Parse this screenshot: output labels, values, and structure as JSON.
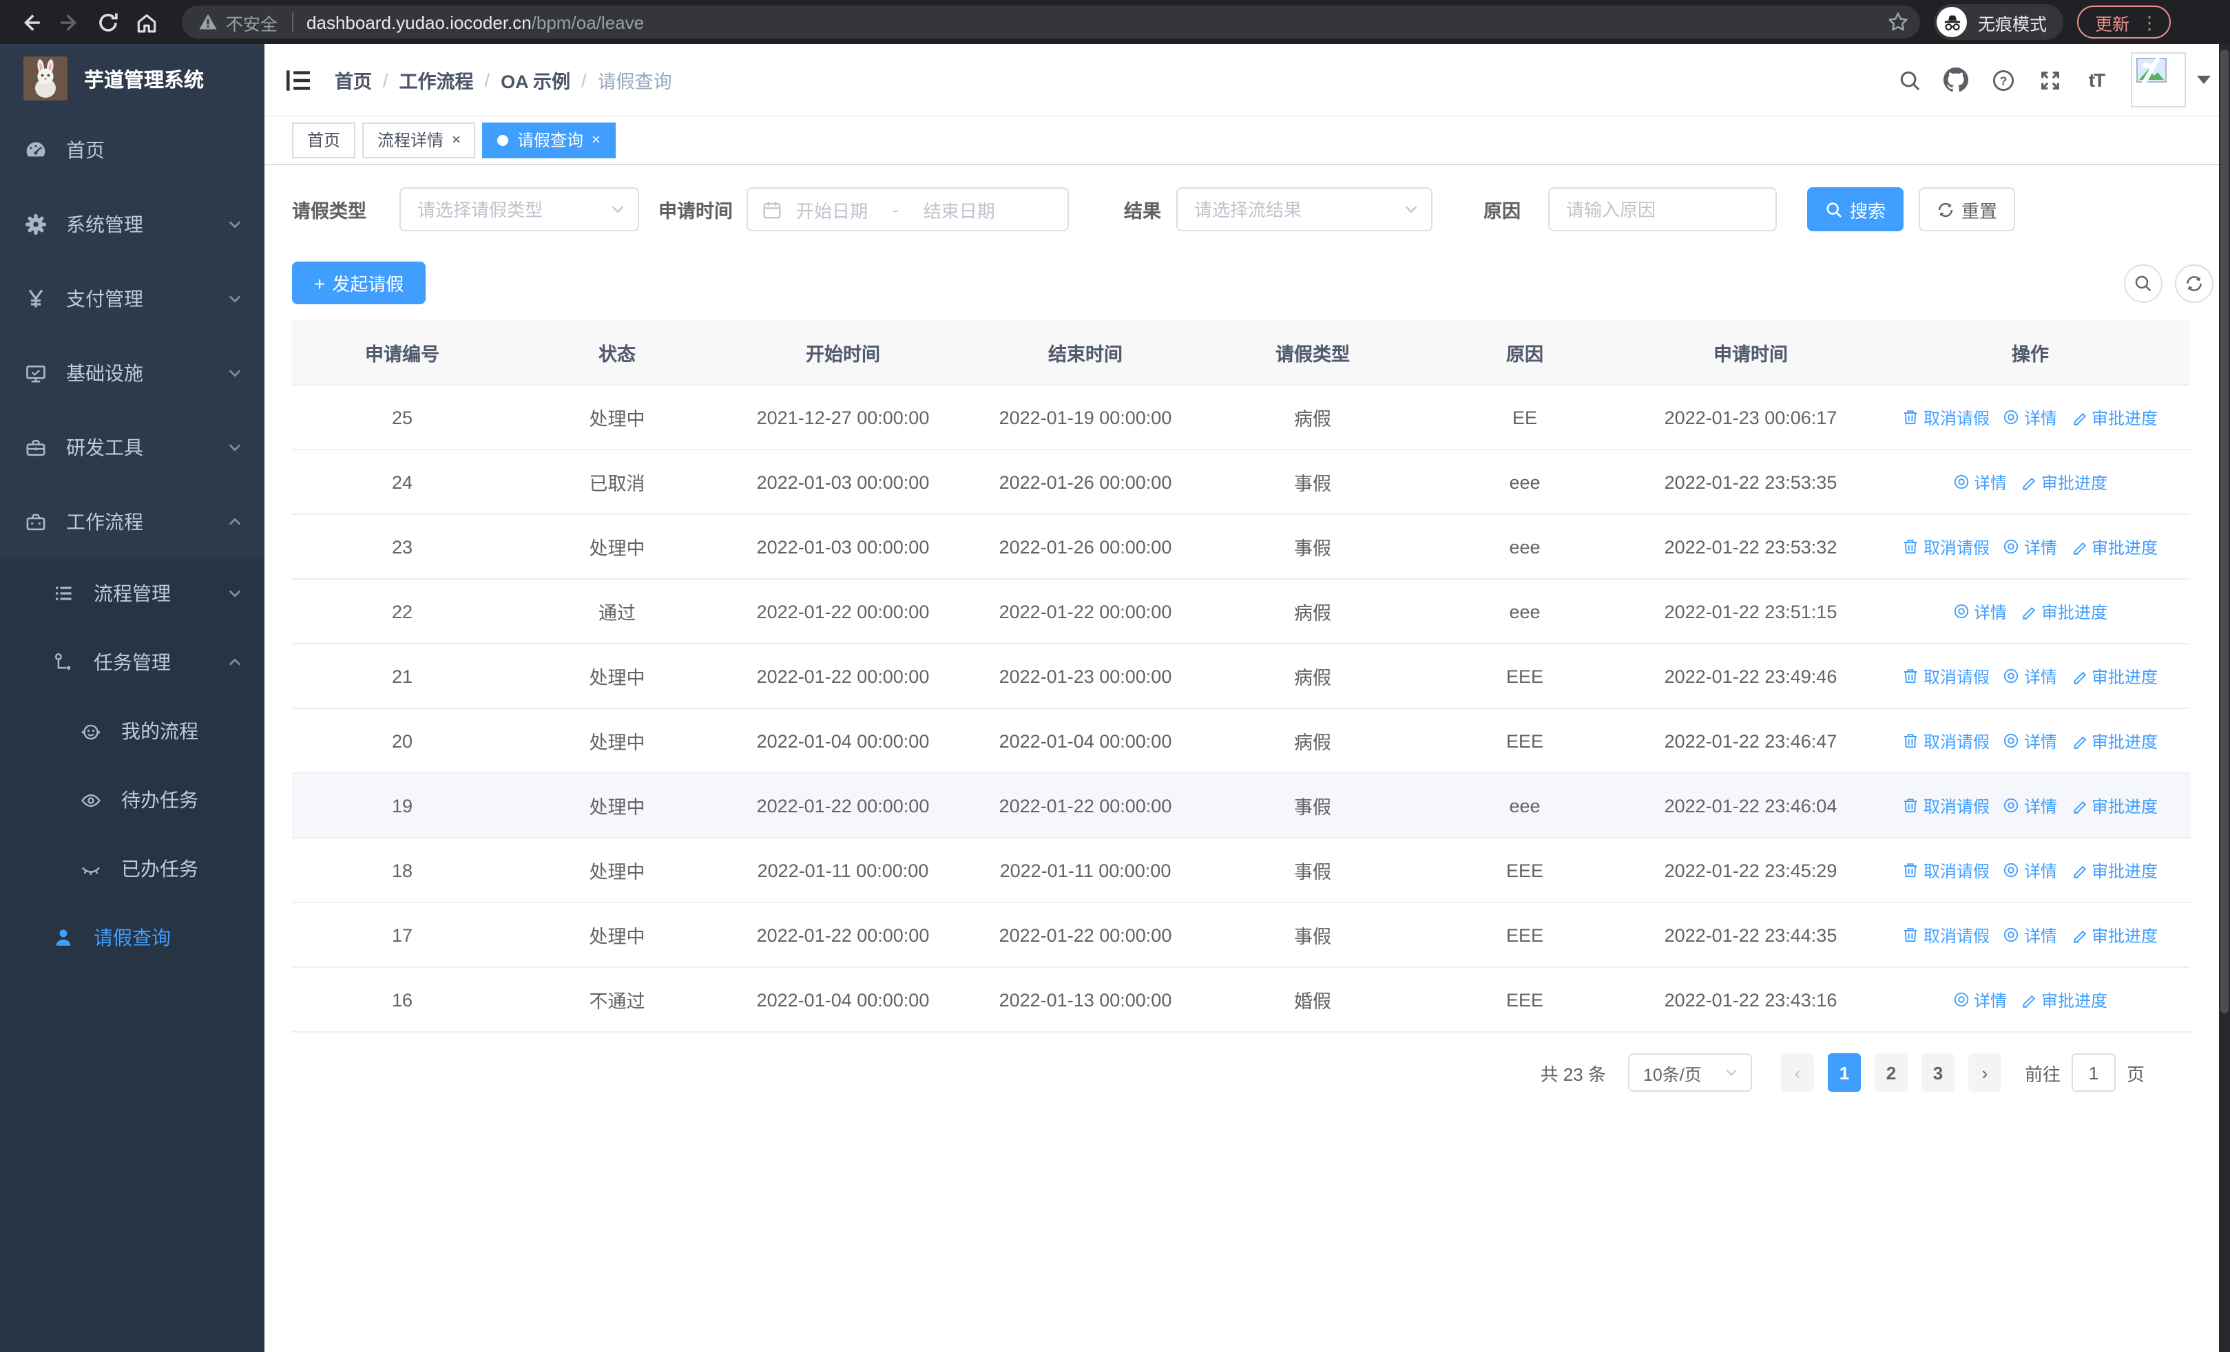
{
  "browser": {
    "security_label": "不安全",
    "url_domain": "dashboard.yudao.iocoder.cn",
    "url_path": "/bpm/oa/leave",
    "incognito_label": "无痕模式",
    "update_label": "更新"
  },
  "sidebar": {
    "title": "芋道管理系统",
    "menu": [
      {
        "label": "首页",
        "icon": "dashboard-icon"
      },
      {
        "label": "系统管理",
        "icon": "gear-icon",
        "arrow": "down"
      },
      {
        "label": "支付管理",
        "icon": "yen-icon",
        "arrow": "down"
      },
      {
        "label": "基础设施",
        "icon": "monitor-icon",
        "arrow": "down"
      },
      {
        "label": "研发工具",
        "icon": "toolbox-icon",
        "arrow": "down"
      },
      {
        "label": "工作流程",
        "icon": "briefcase-icon",
        "arrow": "up",
        "expanded": true
      }
    ],
    "submenu": [
      {
        "label": "流程管理",
        "icon": "list-icon",
        "arrow": "down"
      },
      {
        "label": "任务管理",
        "icon": "flow-icon",
        "arrow": "up"
      },
      {
        "label": "我的流程",
        "icon": "robot-icon"
      },
      {
        "label": "待办任务",
        "icon": "eye-icon"
      },
      {
        "label": "已办任务",
        "icon": "eye-closed-icon"
      },
      {
        "label": "请假查询",
        "icon": "user-icon",
        "active": true
      }
    ]
  },
  "header": {
    "breadcrumb": [
      "首页",
      "工作流程",
      "OA 示例",
      "请假查询"
    ]
  },
  "tabs": [
    {
      "label": "首页",
      "closable": false,
      "active": false
    },
    {
      "label": "流程详情",
      "closable": true,
      "active": false
    },
    {
      "label": "请假查询",
      "closable": true,
      "active": true
    }
  ],
  "filters": {
    "leave_type_label": "请假类型",
    "leave_type_placeholder": "请选择请假类型",
    "apply_time_label": "申请时间",
    "start_date_placeholder": "开始日期",
    "range_separator": "-",
    "end_date_placeholder": "结束日期",
    "result_label": "结果",
    "result_placeholder": "请选择流结果",
    "reason_label": "原因",
    "reason_placeholder": "请输入原因",
    "search_label": "搜索",
    "reset_label": "重置"
  },
  "toolbar": {
    "create_label": "发起请假"
  },
  "table": {
    "columns": [
      "申请编号",
      "状态",
      "开始时间",
      "结束时间",
      "请假类型",
      "原因",
      "申请时间",
      "操作"
    ],
    "action_labels": {
      "cancel": "取消请假",
      "detail": "详情",
      "progress": "审批进度"
    },
    "rows": [
      {
        "id": "25",
        "status": "处理中",
        "start": "2021-12-27 00:00:00",
        "end": "2022-01-19 00:00:00",
        "type": "病假",
        "reason": "EE",
        "apply_time": "2022-01-23 00:06:17",
        "actions": [
          "cancel",
          "detail",
          "progress"
        ],
        "highlight": false
      },
      {
        "id": "24",
        "status": "已取消",
        "start": "2022-01-03 00:00:00",
        "end": "2022-01-26 00:00:00",
        "type": "事假",
        "reason": "eee",
        "apply_time": "2022-01-22 23:53:35",
        "actions": [
          "detail",
          "progress"
        ],
        "highlight": false
      },
      {
        "id": "23",
        "status": "处理中",
        "start": "2022-01-03 00:00:00",
        "end": "2022-01-26 00:00:00",
        "type": "事假",
        "reason": "eee",
        "apply_time": "2022-01-22 23:53:32",
        "actions": [
          "cancel",
          "detail",
          "progress"
        ],
        "highlight": false
      },
      {
        "id": "22",
        "status": "通过",
        "start": "2022-01-22 00:00:00",
        "end": "2022-01-22 00:00:00",
        "type": "病假",
        "reason": "eee",
        "apply_time": "2022-01-22 23:51:15",
        "actions": [
          "detail",
          "progress"
        ],
        "highlight": false
      },
      {
        "id": "21",
        "status": "处理中",
        "start": "2022-01-22 00:00:00",
        "end": "2022-01-23 00:00:00",
        "type": "病假",
        "reason": "EEE",
        "apply_time": "2022-01-22 23:49:46",
        "actions": [
          "cancel",
          "detail",
          "progress"
        ],
        "highlight": false
      },
      {
        "id": "20",
        "status": "处理中",
        "start": "2022-01-04 00:00:00",
        "end": "2022-01-04 00:00:00",
        "type": "病假",
        "reason": "EEE",
        "apply_time": "2022-01-22 23:46:47",
        "actions": [
          "cancel",
          "detail",
          "progress"
        ],
        "highlight": false
      },
      {
        "id": "19",
        "status": "处理中",
        "start": "2022-01-22 00:00:00",
        "end": "2022-01-22 00:00:00",
        "type": "事假",
        "reason": "eee",
        "apply_time": "2022-01-22 23:46:04",
        "actions": [
          "cancel",
          "detail",
          "progress"
        ],
        "highlight": true
      },
      {
        "id": "18",
        "status": "处理中",
        "start": "2022-01-11 00:00:00",
        "end": "2022-01-11 00:00:00",
        "type": "事假",
        "reason": "EEE",
        "apply_time": "2022-01-22 23:45:29",
        "actions": [
          "cancel",
          "detail",
          "progress"
        ],
        "highlight": false
      },
      {
        "id": "17",
        "status": "处理中",
        "start": "2022-01-22 00:00:00",
        "end": "2022-01-22 00:00:00",
        "type": "事假",
        "reason": "EEE",
        "apply_time": "2022-01-22 23:44:35",
        "actions": [
          "cancel",
          "detail",
          "progress"
        ],
        "highlight": false
      },
      {
        "id": "16",
        "status": "不通过",
        "start": "2022-01-04 00:00:00",
        "end": "2022-01-13 00:00:00",
        "type": "婚假",
        "reason": "EEE",
        "apply_time": "2022-01-22 23:43:16",
        "actions": [
          "detail",
          "progress"
        ],
        "highlight": false
      }
    ]
  },
  "pagination": {
    "total_label": "共 23 条",
    "page_size_label": "10条/页",
    "pages": [
      "1",
      "2",
      "3"
    ],
    "active_page": "1",
    "prev_enabled": false,
    "next_enabled": true,
    "goto_label": "前往",
    "goto_value": "1",
    "goto_suffix": "页"
  },
  "colors": {
    "accent": "#409eff",
    "link": "#409eff",
    "sidebar_bg": "#2d3a4b",
    "sidebar_submenu_bg": "#263444",
    "sidebar_text": "#bfcbd9",
    "active_tab_bg": "#409eff",
    "browser_bar_bg": "#202124",
    "omnibox_bg": "#35363a",
    "update_accent": "#e78f87",
    "table_border": "#ebeef5",
    "table_header_bg": "#f8f8f9",
    "row_highlight": "#f5f7fa"
  }
}
